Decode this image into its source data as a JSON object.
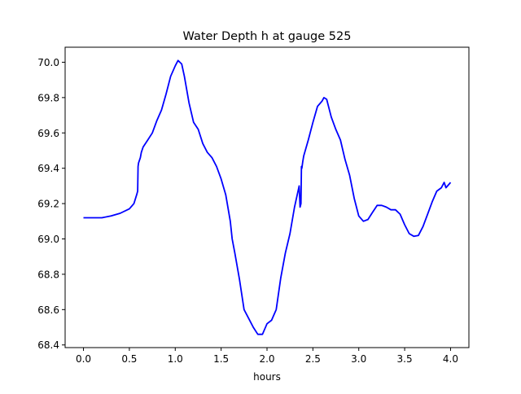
{
  "chart_data": {
    "type": "line",
    "title": "Water Depth h at gauge 525",
    "xlabel": "hours",
    "ylabel": "",
    "xlim": [
      -0.2,
      4.2
    ],
    "ylim": [
      68.385,
      70.085
    ],
    "grid": false,
    "xticks": [
      0.0,
      0.5,
      1.0,
      1.5,
      2.0,
      2.5,
      3.0,
      3.5,
      4.0
    ],
    "xtick_labels": [
      "0.0",
      "0.5",
      "1.0",
      "1.5",
      "2.0",
      "2.5",
      "3.0",
      "3.5",
      "4.0"
    ],
    "yticks": [
      68.4,
      68.6,
      68.8,
      69.0,
      69.2,
      69.4,
      69.6,
      69.8,
      70.0
    ],
    "ytick_labels": [
      "68.4",
      "68.6",
      "68.8",
      "69.0",
      "69.2",
      "69.4",
      "69.6",
      "69.8",
      "70.0"
    ],
    "series": [
      {
        "name": "h",
        "color": "#0000ff",
        "x": [
          0,
          0.2,
          0.3,
          0.4,
          0.5,
          0.55,
          0.58,
          0.59,
          0.595,
          0.6,
          0.62,
          0.63,
          0.65,
          0.7,
          0.75,
          0.8,
          0.85,
          0.9,
          0.95,
          1.0,
          1.03,
          1.07,
          1.1,
          1.15,
          1.2,
          1.25,
          1.3,
          1.35,
          1.4,
          1.45,
          1.5,
          1.55,
          1.6,
          1.62,
          1.65,
          1.7,
          1.75,
          1.8,
          1.85,
          1.9,
          1.95,
          2.0,
          2.05,
          2.1,
          2.15,
          2.2,
          2.25,
          2.3,
          2.35,
          2.36,
          2.37,
          2.375,
          2.38,
          2.39,
          2.4,
          2.45,
          2.5,
          2.55,
          2.6,
          2.62,
          2.65,
          2.7,
          2.75,
          2.8,
          2.85,
          2.9,
          2.95,
          3.0,
          3.05,
          3.1,
          3.15,
          3.2,
          3.25,
          3.3,
          3.35,
          3.4,
          3.45,
          3.5,
          3.55,
          3.6,
          3.65,
          3.7,
          3.75,
          3.8,
          3.85,
          3.9,
          3.93,
          3.95,
          4.0
        ],
        "y": [
          69.12,
          69.12,
          69.13,
          69.145,
          69.17,
          69.2,
          69.25,
          69.27,
          69.41,
          69.43,
          69.46,
          69.49,
          69.52,
          69.56,
          69.6,
          69.67,
          69.73,
          69.82,
          69.92,
          69.98,
          70.01,
          69.99,
          69.92,
          69.77,
          69.66,
          69.62,
          69.54,
          69.49,
          69.46,
          69.41,
          69.34,
          69.25,
          69.1,
          69.0,
          68.92,
          68.77,
          68.6,
          68.55,
          68.5,
          68.46,
          68.46,
          68.52,
          68.54,
          68.6,
          68.78,
          68.92,
          69.03,
          69.18,
          69.3,
          69.18,
          69.2,
          69.41,
          69.4,
          69.44,
          69.47,
          69.56,
          69.66,
          69.75,
          69.78,
          69.8,
          69.79,
          69.69,
          69.62,
          69.56,
          69.45,
          69.36,
          69.23,
          69.13,
          69.1,
          69.11,
          69.15,
          69.19,
          69.19,
          69.18,
          69.165,
          69.165,
          69.14,
          69.08,
          69.03,
          69.015,
          69.02,
          69.07,
          69.14,
          69.21,
          69.27,
          69.29,
          69.32,
          69.29,
          69.32
        ]
      }
    ]
  }
}
